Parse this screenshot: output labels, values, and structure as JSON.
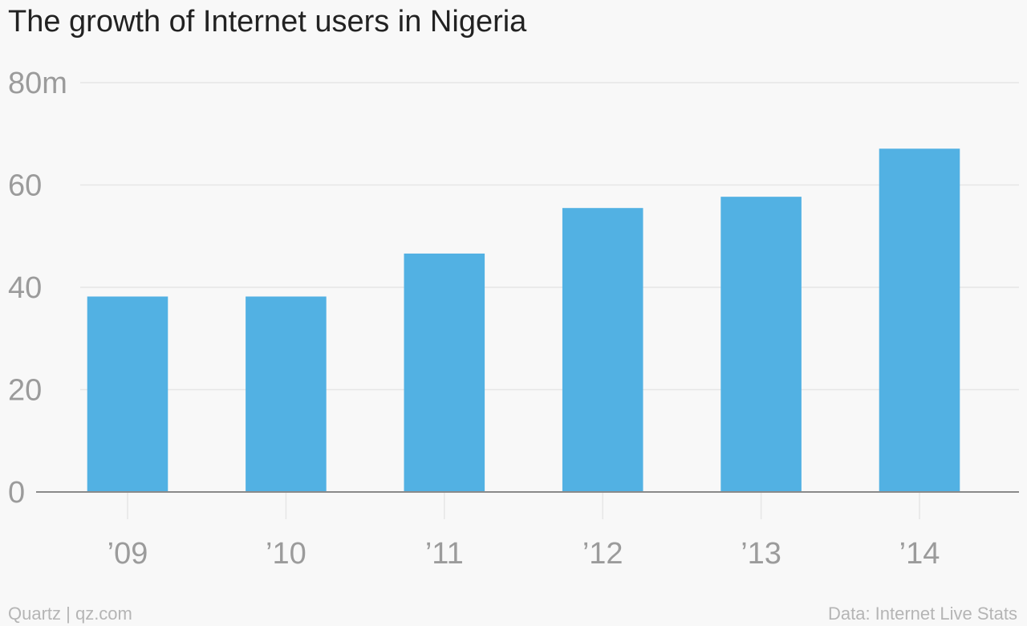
{
  "chart_data": {
    "type": "bar",
    "title": "The growth of Internet users in Nigeria",
    "categories": [
      "’09",
      "’10",
      "’11",
      "’12",
      "’13",
      "’14"
    ],
    "values": [
      38.2,
      38.2,
      46.6,
      55.5,
      57.7,
      67.1
    ],
    "y_unit": "millions",
    "ylim": [
      0,
      80
    ],
    "yticks": [
      0,
      20,
      40,
      60,
      80
    ],
    "ytick_labels": [
      "0",
      "20",
      "40",
      "60",
      "80m"
    ],
    "grid": true,
    "legend": "none",
    "colors": {
      "bar": "#52b1e3",
      "gridline": "#e6e6e6",
      "axis": "#8a8a8a",
      "tick_text": "#9b9b9b",
      "background": "#f8f8f8"
    }
  },
  "footer": {
    "source_left": "Quartz | qz.com",
    "source_right": "Data: Internet Live Stats"
  }
}
